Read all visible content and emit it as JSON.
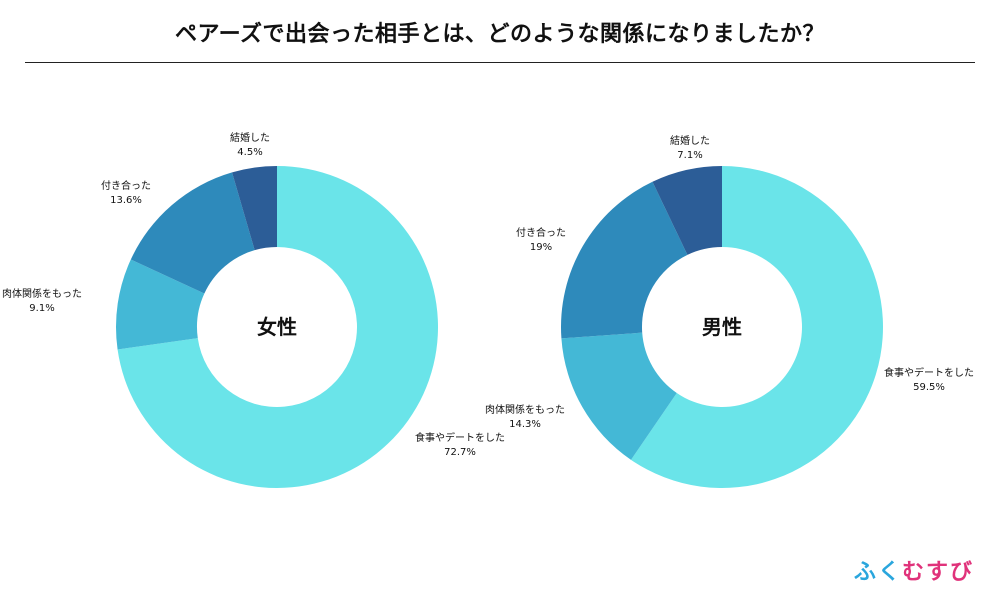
{
  "title": "ペアーズで出会った相手とは、どのような関係になりましたか？",
  "brand": {
    "chars": [
      "ふ",
      "く",
      "む",
      "す",
      "び"
    ]
  },
  "colors": {
    "食事やデートをした": "#6ae4e9",
    "肉体関係をもった": "#44b8d6",
    "付き合った": "#2e8abb",
    "結婚した": "#2c5d97"
  },
  "chart_data": [
    {
      "type": "pie",
      "center_label": "女性",
      "slices": [
        {
          "label": "食事やデートをした",
          "value": 72.7,
          "display": "72.7%"
        },
        {
          "label": "肉体関係をもった",
          "value": 9.1,
          "display": "9.1%"
        },
        {
          "label": "付き合った",
          "value": 13.6,
          "display": "13.6%"
        },
        {
          "label": "結婚した",
          "value": 4.5,
          "display": "4.5%"
        }
      ]
    },
    {
      "type": "pie",
      "center_label": "男性",
      "slices": [
        {
          "label": "食事やデートをした",
          "value": 59.5,
          "display": "59.5%"
        },
        {
          "label": "肉体関係をもった",
          "value": 14.3,
          "display": "14.3%"
        },
        {
          "label": "付き合った",
          "value": 19,
          "display": "19%"
        },
        {
          "label": "結婚した",
          "value": 7.1,
          "display": "7.1%"
        }
      ]
    }
  ]
}
